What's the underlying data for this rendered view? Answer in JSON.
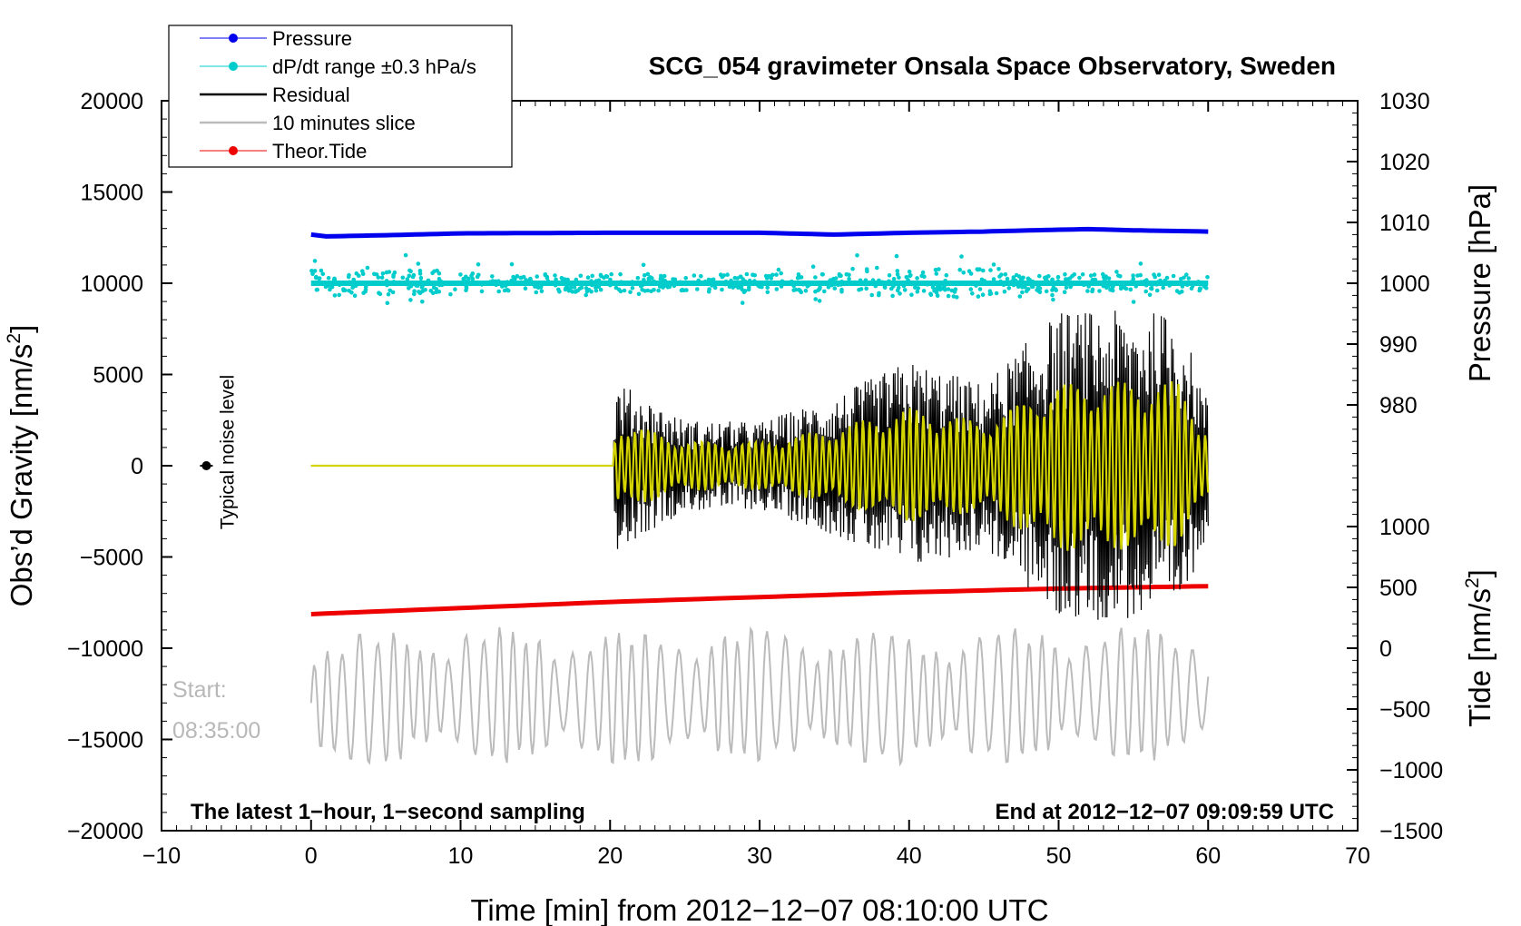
{
  "chart_data": {
    "type": "line",
    "title": "SCG_054 gravimeter Onsala Space Observatory, Sweden",
    "xlabel": "Time [min] from 2012−12−07 08:10:00 UTC",
    "ylabel_left": "Obs'd Gravity [nm/s²]",
    "ylabel_left_parts": [
      "Obs’d Gravity [nm/s",
      "2",
      "]"
    ],
    "ylabel_right_top": "Pressure [hPa]",
    "ylabel_right_bottom": "Tide [nm/s²]",
    "ylabel_right_bottom_parts": [
      "Tide [nm/s",
      "2",
      "]"
    ],
    "xlim": [
      -10,
      70
    ],
    "ylim": [
      -20000,
      20000
    ],
    "x_ticks": [
      "−10",
      "0",
      "10",
      "20",
      "30",
      "40",
      "50",
      "60",
      "70"
    ],
    "x_tick_values": [
      -10,
      0,
      10,
      20,
      30,
      40,
      50,
      60,
      70
    ],
    "y_left_ticks": [
      "20000",
      "15000",
      "10000",
      "5000",
      "0",
      "−5000",
      "−10000",
      "−15000",
      "−20000"
    ],
    "y_left_tick_values": [
      20000,
      15000,
      10000,
      5000,
      0,
      -5000,
      -10000,
      -15000,
      -20000
    ],
    "pressure_axis": {
      "ticks": [
        "1030",
        "1020",
        "1010",
        "1000",
        "990",
        "980"
      ],
      "tick_values": [
        1030,
        1020,
        1010,
        1000,
        990,
        980
      ],
      "range": [
        970,
        1030
      ]
    },
    "tide_axis": {
      "ticks": [
        "1000",
        "500",
        "0",
        "−500",
        "−1000",
        "−1500"
      ],
      "tick_values": [
        1000,
        500,
        0,
        -500,
        -1000,
        -1500
      ],
      "range": [
        -1500,
        1500
      ]
    },
    "legend": [
      {
        "label": "Pressure",
        "color": "#0000ee",
        "marker": "dot"
      },
      {
        "label": "dP/dt range ±0.3 hPa/s",
        "color": "#00cccc",
        "marker": "dot"
      },
      {
        "label": "Residual",
        "color": "#000000",
        "marker": "line"
      },
      {
        "label": "10 minutes slice",
        "color": "#bbbbbb",
        "marker": "line"
      },
      {
        "label": "Theor.Tide",
        "color": "#ee0000",
        "marker": "dot"
      }
    ],
    "series": [
      {
        "name": "Pressure",
        "axis": "pressure",
        "color": "#0000ee",
        "x": [
          0,
          1,
          5,
          10,
          20,
          30,
          35,
          40,
          45,
          50,
          52,
          55,
          60
        ],
        "values": [
          1008,
          1007.7,
          1007.9,
          1008.2,
          1008.3,
          1008.3,
          1008.0,
          1008.3,
          1008.5,
          1008.8,
          1008.9,
          1008.7,
          1008.5
        ]
      },
      {
        "name": "dP/dt range ±0.3 hPa/s",
        "axis": "gravity",
        "color": "#00cccc",
        "description_value": 10000,
        "x": [
          0,
          60
        ],
        "values": [
          10000,
          10000
        ]
      },
      {
        "name": "Residual",
        "axis": "gravity",
        "color": "#000000",
        "x": [
          0,
          20,
          20.5,
          25,
          30,
          35,
          40,
          45,
          50,
          53,
          55,
          58,
          60
        ],
        "values": [
          0,
          0,
          4600,
          2500,
          2400,
          3800,
          5800,
          4500,
          8500,
          8500,
          8500,
          8400,
          3500
        ]
      },
      {
        "name": "10 minutes slice",
        "axis": "gravity",
        "color": "#bbbbbb",
        "x": [
          0,
          10,
          20,
          30,
          40,
          50,
          60
        ],
        "values": [
          -13000,
          -12500,
          -12800,
          -12500,
          -12800,
          -12500,
          -12500
        ]
      },
      {
        "name": "Theor.Tide",
        "axis": "tide",
        "color": "#ee0000",
        "x": [
          0,
          10,
          20,
          30,
          40,
          50,
          60
        ],
        "values": [
          280,
          330,
          380,
          420,
          460,
          490,
          510
        ]
      }
    ],
    "annotations": {
      "noise_label": "Typical noise level",
      "noise_point": {
        "x": -7,
        "y": 0
      },
      "start_label": "Start:",
      "start_time": "08:35:00",
      "footer_left": "The latest 1−hour, 1−second sampling",
      "footer_right": "End at 2012−12−07 09:09:59 UTC"
    }
  }
}
